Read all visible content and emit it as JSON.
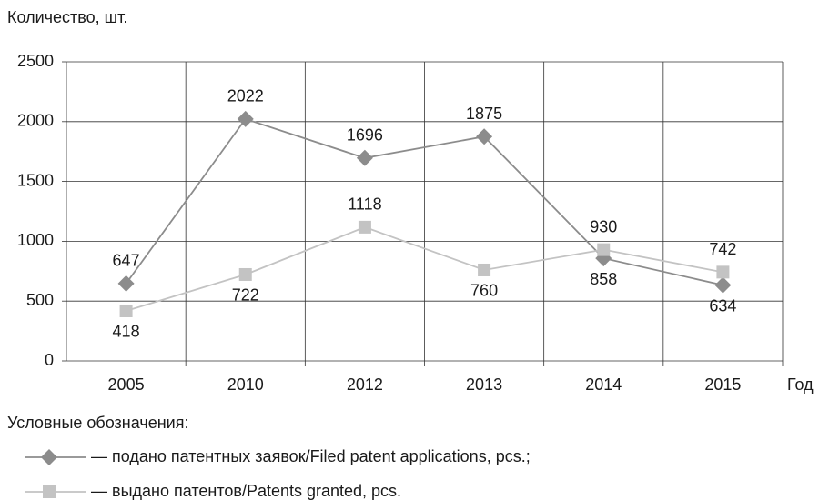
{
  "chart_data": {
    "type": "line",
    "y_axis_label": "Количество, шт.",
    "x_axis_label": "Год",
    "legend_title": "Условные обозначения:",
    "categories": [
      "2005",
      "2010",
      "2012",
      "2013",
      "2014",
      "2015"
    ],
    "series": [
      {
        "name": "— подано патентных заявок/Filed patent applications, pcs.;",
        "color": "#8c8c8c",
        "marker": "diamond",
        "values": [
          647,
          2022,
          1696,
          1875,
          858,
          634
        ]
      },
      {
        "name": "— выдано патентов/Patents granted, pcs.",
        "color": "#c3c3c3",
        "marker": "square",
        "values": [
          418,
          722,
          1118,
          760,
          930,
          742
        ]
      }
    ],
    "ylim": [
      0,
      2500
    ],
    "yticks": [
      0,
      500,
      1000,
      1500,
      2000,
      2500
    ],
    "grid": true
  }
}
